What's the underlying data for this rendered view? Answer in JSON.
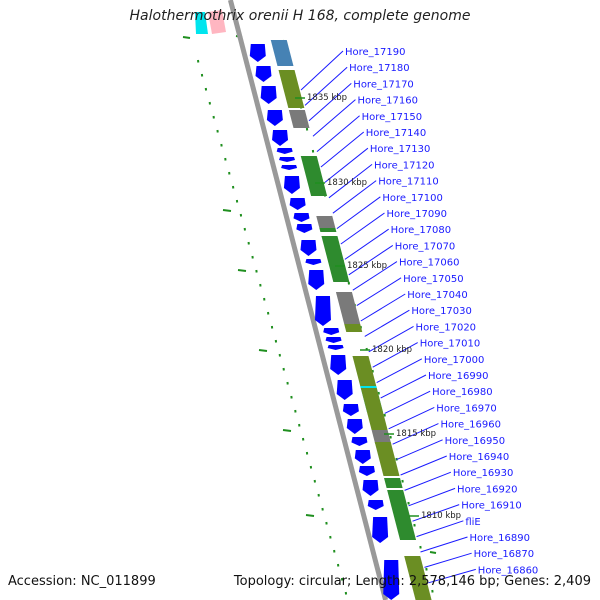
{
  "title": "Halothermothrix orenii H 168, complete genome",
  "accession": "Accession: NC_011899",
  "topology": "Topology: circular; Length: 2,578,146 bp; Genes: 2,409",
  "genes": [
    "Hore_17190",
    "Hore_17180",
    "Hore_17170",
    "Hore_17160",
    "Hore_17150",
    "Hore_17140",
    "Hore_17130",
    "Hore_17120",
    "Hore_17110",
    "Hore_17100",
    "Hore_17090",
    "Hore_17080",
    "Hore_17070",
    "Hore_17060",
    "Hore_17050",
    "Hore_17040",
    "Hore_17030",
    "Hore_17020",
    "Hore_17010",
    "Hore_17000",
    "Hore_16990",
    "Hore_16980",
    "Hore_16970",
    "Hore_16960",
    "Hore_16950",
    "Hore_16940",
    "Hore_16930",
    "Hore_16920",
    "Hore_16910",
    "fliE",
    "Hore_16890",
    "Hore_16870",
    "Hore_16860"
  ],
  "kbp_markers": [
    "1835 kbp",
    "1830 kbp",
    "1825 kbp",
    "1820 kbp",
    "1815 kbp",
    "1810 kbp"
  ],
  "colors": {
    "cds": "#0000ff",
    "backbone": "#999999",
    "dots": "#1f8f1f",
    "label": "#1a1aff",
    "cog_olive": "#6b8e23",
    "cog_green": "#2e8b2e",
    "cog_gray": "#7a7a7a",
    "cog_blue": "#4682b4",
    "cog_cyan": "#00e5ee",
    "cog_pink": "#ffb6c1"
  }
}
